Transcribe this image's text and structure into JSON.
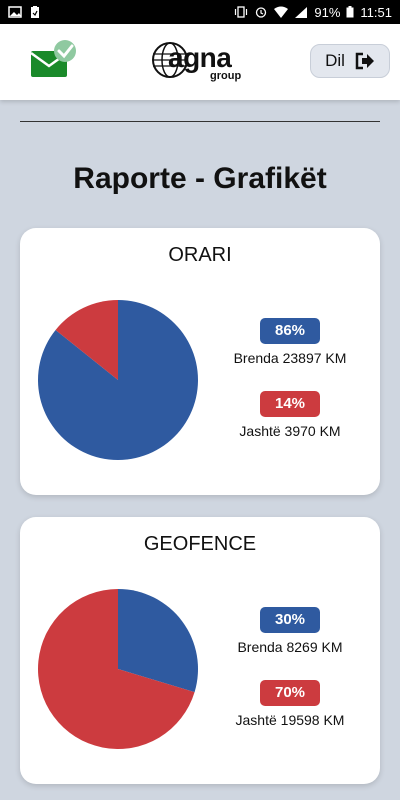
{
  "status_bar": {
    "battery": "91%",
    "time": "11:51"
  },
  "header": {
    "logo_main": "agna",
    "logo_sub": "group",
    "logout_label": "Dil"
  },
  "page": {
    "title": "Raporte - Grafikët"
  },
  "reports": [
    {
      "title": "ORARI",
      "inside_percent": "86%",
      "inside_label": "Brenda 23897  KM",
      "outside_percent": "14%",
      "outside_label": "Jashtë 3970  KM"
    },
    {
      "title": "GEOFENCE",
      "inside_percent": "30%",
      "inside_label": "Brenda 8269  KM",
      "outside_percent": "70%",
      "outside_label": "Jashtë 19598  KM"
    }
  ],
  "colors": {
    "inside": "#2f5aa0",
    "outside": "#cc3b3f",
    "mail_green": "#1a8a2a"
  },
  "chart_data": [
    {
      "type": "pie",
      "title": "ORARI",
      "categories": [
        "Brenda",
        "Jashtë"
      ],
      "values": [
        23897,
        3970
      ]
    },
    {
      "type": "pie",
      "title": "GEOFENCE",
      "categories": [
        "Brenda",
        "Jashtë"
      ],
      "values": [
        8269,
        19598
      ]
    }
  ]
}
